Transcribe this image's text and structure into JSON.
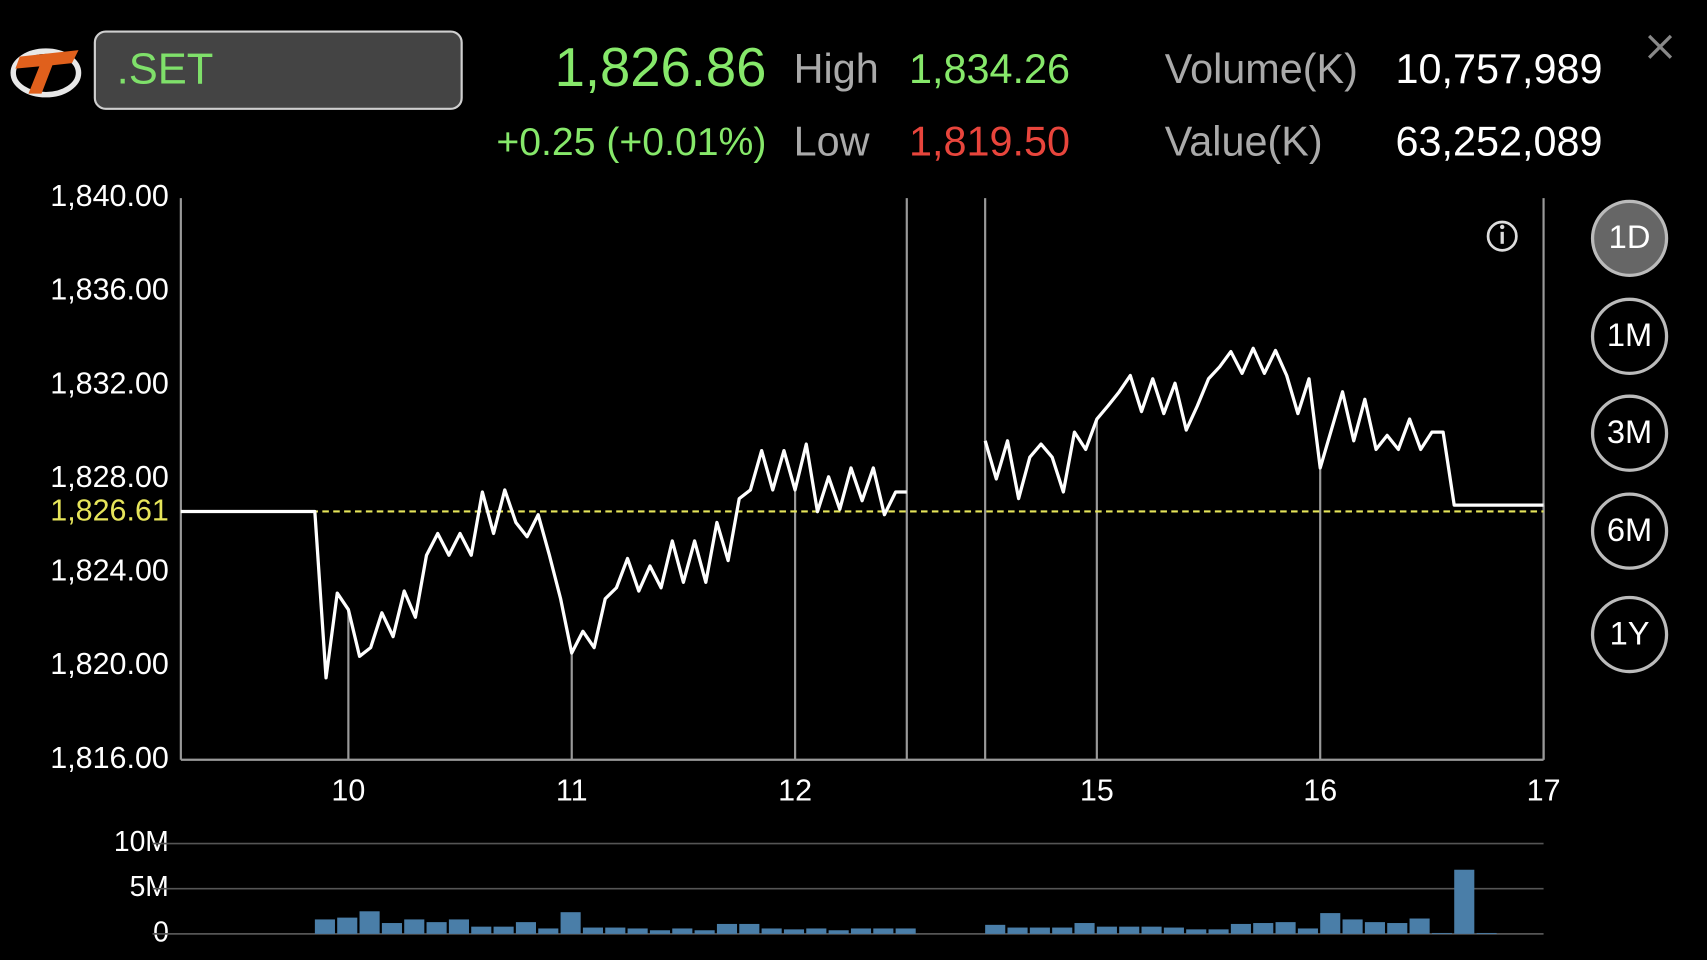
{
  "header": {
    "symbol": ".SET",
    "last": "1,826.86",
    "change": "+0.25 (+0.01%)",
    "high_label": "High",
    "high": "1,834.26",
    "low_label": "Low",
    "low": "1,819.50",
    "volume_label": "Volume(K)",
    "volume": "10,757,989",
    "value_label": "Value(K)",
    "value": "63,252,089"
  },
  "periods": [
    {
      "label": "1D",
      "selected": true
    },
    {
      "label": "1M"
    },
    {
      "label": "3M"
    },
    {
      "label": "6M"
    },
    {
      "label": "1Y"
    }
  ],
  "chart_data": [
    {
      "type": "line",
      "color": "#ffffff",
      "xlim": [
        9.25,
        17
      ],
      "xbreak": [
        12.5,
        14.5
      ],
      "xticks": [
        10,
        11,
        12,
        15,
        16,
        17
      ],
      "ylim": [
        1816,
        1840
      ],
      "yticks": [
        {
          "value": 1816,
          "label": "1,816.00"
        },
        {
          "value": 1820,
          "label": "1,820.00"
        },
        {
          "value": 1824,
          "label": "1,824.00"
        },
        {
          "value": 1828,
          "label": "1,828.00"
        },
        {
          "value": 1832,
          "label": "1,832.00"
        },
        {
          "value": 1836,
          "label": "1,836.00"
        },
        {
          "value": 1840,
          "label": "1,840.00"
        }
      ],
      "reference_line": {
        "value": 1826.61,
        "label": "1,826.61",
        "color": "#e6e55a"
      },
      "x": [
        9.25,
        9.85,
        9.9,
        9.95,
        10.0,
        10.05,
        10.1,
        10.15,
        10.2,
        10.25,
        10.3,
        10.35,
        10.4,
        10.45,
        10.5,
        10.55,
        10.6,
        10.65,
        10.7,
        10.75,
        10.8,
        10.85,
        10.9,
        10.95,
        11.0,
        11.05,
        11.1,
        11.15,
        11.2,
        11.25,
        11.3,
        11.35,
        11.4,
        11.45,
        11.5,
        11.55,
        11.6,
        11.65,
        11.7,
        11.75,
        11.8,
        11.85,
        11.9,
        11.95,
        12.0,
        12.05,
        12.1,
        12.15,
        12.2,
        12.25,
        12.3,
        12.35,
        12.4,
        12.45,
        12.5,
        13.5,
        14.5,
        14.55,
        14.6,
        14.65,
        14.7,
        14.75,
        14.8,
        14.85,
        14.9,
        14.95,
        15.0,
        15.05,
        15.1,
        15.15,
        15.2,
        15.25,
        15.3,
        15.35,
        15.4,
        15.45,
        15.5,
        15.55,
        15.6,
        15.65,
        15.7,
        15.75,
        15.8,
        15.85,
        15.9,
        15.95,
        16.0,
        16.05,
        16.1,
        16.15,
        16.2,
        16.25,
        16.3,
        16.35,
        16.4,
        16.45,
        16.5,
        16.55,
        16.6,
        17.0
      ],
      "values": [
        1826.61,
        1826.61,
        1819.5,
        1823.12,
        1822.42,
        1820.42,
        1820.79,
        1822.28,
        1821.26,
        1823.21,
        1822.09,
        1824.74,
        1825.67,
        1824.74,
        1825.67,
        1824.74,
        1827.44,
        1825.67,
        1827.53,
        1826.14,
        1825.53,
        1826.47,
        1824.74,
        1822.88,
        1820.56,
        1821.49,
        1820.79,
        1822.88,
        1823.35,
        1824.6,
        1823.21,
        1824.28,
        1823.35,
        1825.35,
        1823.58,
        1825.35,
        1823.58,
        1826.14,
        1824.51,
        1827.16,
        1827.53,
        1829.21,
        1827.53,
        1829.21,
        1827.53,
        1829.49,
        1826.6,
        1828.09,
        1826.7,
        1828.47,
        1827.07,
        1828.47,
        1826.47,
        1827.44,
        1827.44,
        null,
        1829.63,
        1828.0,
        1829.63,
        1827.16,
        1828.93,
        1829.49,
        1828.93,
        1827.44,
        1830.0,
        1829.26,
        1830.56,
        1831.12,
        1831.72,
        1832.42,
        1830.88,
        1832.28,
        1830.79,
        1832.09,
        1830.09,
        1831.12,
        1832.28,
        1832.79,
        1833.44,
        1832.51,
        1833.58,
        1832.51,
        1833.49,
        1832.42,
        1830.79,
        1832.28,
        1828.47,
        1830.09,
        1831.72,
        1829.63,
        1831.4,
        1829.26,
        1829.86,
        1829.26,
        1830.56,
        1829.26,
        1830.0,
        1830.0,
        1826.88,
        1826.88
      ]
    },
    {
      "type": "bar",
      "color": "#4a7ea8",
      "xlim": [
        9.25,
        17
      ],
      "xbreak": [
        12.5,
        14.5
      ],
      "ylim": [
        0,
        10000000
      ],
      "yticks": [
        0,
        {
          "value": 5000000,
          "label": "5M"
        },
        {
          "value": 10000000,
          "label": "10M"
        }
      ],
      "x": [
        9.85,
        9.95,
        10.05,
        10.15,
        10.25,
        10.35,
        10.45,
        10.55,
        10.65,
        10.75,
        10.85,
        10.95,
        11.05,
        11.15,
        11.25,
        11.35,
        11.45,
        11.55,
        11.65,
        11.75,
        11.85,
        11.95,
        12.05,
        12.15,
        12.25,
        12.35,
        12.45,
        14.5,
        14.6,
        14.7,
        14.8,
        14.9,
        15.0,
        15.1,
        15.2,
        15.3,
        15.4,
        15.5,
        15.6,
        15.7,
        15.8,
        15.9,
        16.0,
        16.1,
        16.2,
        16.3,
        16.4,
        16.5,
        16.6,
        16.7
      ],
      "values": [
        1600000,
        1800000,
        2500000,
        1200000,
        1600000,
        1300000,
        1600000,
        800000,
        800000,
        1300000,
        600000,
        2400000,
        700000,
        700000,
        600000,
        400000,
        600000,
        400000,
        1100000,
        1100000,
        600000,
        500000,
        600000,
        400000,
        600000,
        600000,
        600000,
        1000000,
        700000,
        700000,
        700000,
        1200000,
        800000,
        800000,
        800000,
        700000,
        500000,
        500000,
        1100000,
        1200000,
        1300000,
        600000,
        2300000,
        1600000,
        1300000,
        1200000,
        1700000,
        100000,
        7100000,
        100000
      ]
    }
  ]
}
